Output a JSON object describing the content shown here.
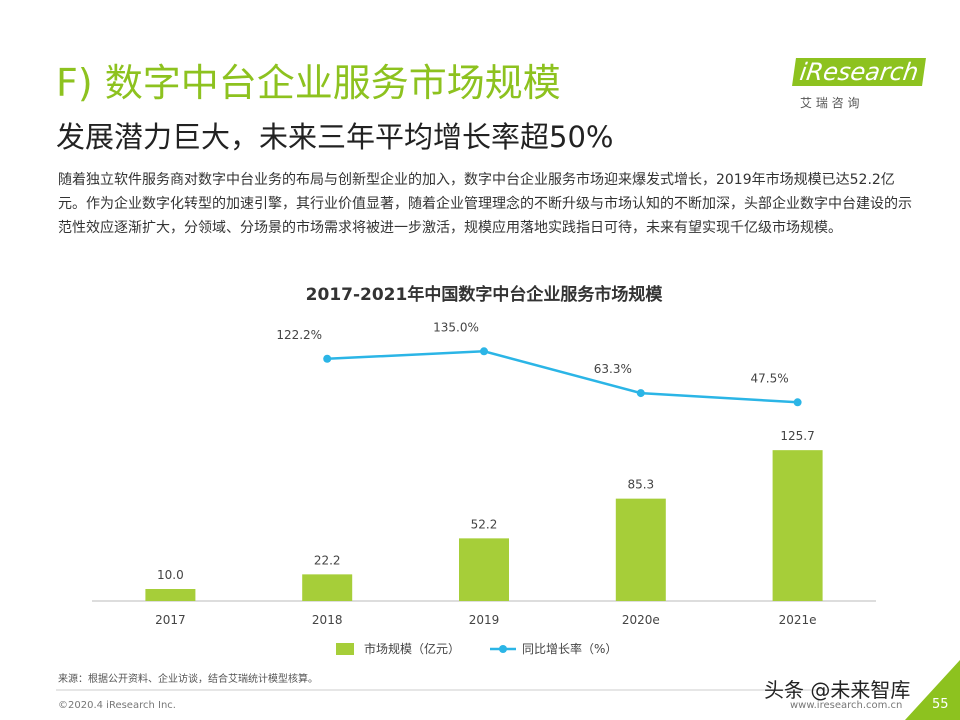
{
  "header": {
    "title": "F) 数字中台企业服务市场规模",
    "subtitle": "发展潜力巨大，未来三年平均增长率超50%",
    "logo": "iResearch",
    "logo_sub": "艾 瑞 咨 询"
  },
  "body": {
    "paragraph": "随着独立软件服务商对数字中台业务的布局与创新型企业的加入，数字中台企业服务市场迎来爆发式增长，2019年市场规模已达52.2亿元。作为企业数字化转型的加速引擎，其行业价值显著，随着企业管理理念的不断升级与市场认知的不断加深，头部企业数字中台建设的示范性效应逐渐扩大，分领域、分场景的市场需求将被进一步激活，规模应用落地实践指日可待，未来有望实现千亿级市场规模。"
  },
  "chart_data": {
    "type": "bar",
    "title": "2017-2021年中国数字中台企业服务市场规模",
    "categories": [
      "2017",
      "2018",
      "2019",
      "2020e",
      "2021e"
    ],
    "series": [
      {
        "name": "市场规模（亿元）",
        "color": "#a6ce39",
        "type": "bar",
        "values": [
          10.0,
          22.2,
          52.2,
          85.3,
          125.7
        ],
        "value_labels": [
          "10.0",
          "22.2",
          "52.2",
          "85.3",
          "125.7"
        ]
      },
      {
        "name": "同比增长率（%）",
        "color": "#2bb5e6",
        "type": "line",
        "axis": "y2",
        "values": [
          null,
          122.2,
          135.0,
          63.3,
          47.5
        ],
        "value_labels": [
          null,
          "122.2%",
          "135.0%",
          "63.3%",
          "47.5%"
        ]
      }
    ],
    "ylim": [
      0,
      130
    ],
    "y2lim": [
      0,
      223
    ]
  },
  "source": "来源：根据公开资料、企业访谈，结合艾瑞统计模型核算。",
  "footer": {
    "copyright": "©2020.4 iResearch Inc.",
    "url": "www.iresearch.com.cn",
    "page": "55"
  },
  "watermark": "头条 @未来智库"
}
